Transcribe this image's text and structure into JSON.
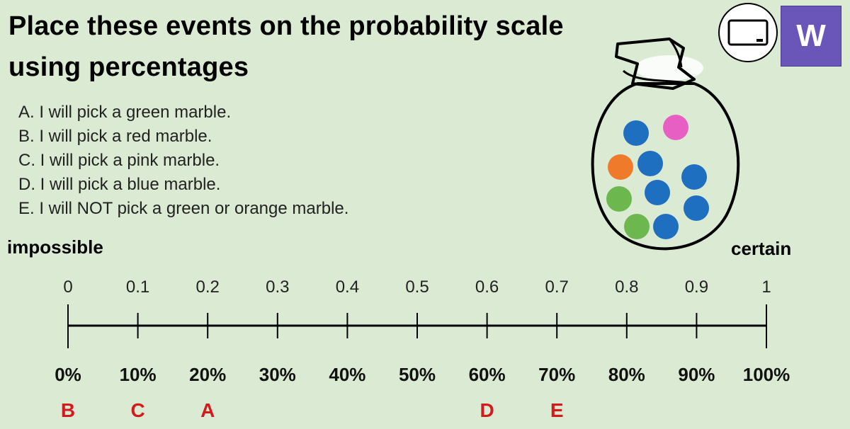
{
  "title": {
    "line1": "Place these events on the probability scale",
    "line2": "using percentages"
  },
  "events": [
    "A. I will pick a green marble.",
    "B. I will pick a red marble.",
    "C. I will pick a pink marble.",
    "D. I will pick a blue marble.",
    "E. I will NOT pick a green or orange marble."
  ],
  "scale": {
    "start_label": "impossible",
    "end_label": "certain",
    "decimals": [
      "0",
      "0.1",
      "0.2",
      "0.3",
      "0.4",
      "0.5",
      "0.6",
      "0.7",
      "0.8",
      "0.9",
      "1"
    ],
    "percentages": [
      "0%",
      "10%",
      "20%",
      "30%",
      "40%",
      "50%",
      "60%",
      "70%",
      "80%",
      "90%",
      "100%"
    ],
    "placements": [
      {
        "letter": "B",
        "value": 0
      },
      {
        "letter": "C",
        "value": 0.1
      },
      {
        "letter": "A",
        "value": 0.2
      },
      {
        "letter": "D",
        "value": 0.6
      },
      {
        "letter": "E",
        "value": 0.7
      }
    ]
  },
  "bag": {
    "marbles": [
      {
        "color": "#1f6fc0"
      },
      {
        "color": "#e85fc4"
      },
      {
        "color": "#ef7a2a"
      },
      {
        "color": "#1f6fc0"
      },
      {
        "color": "#1f6fc0"
      },
      {
        "color": "#6cb84f"
      },
      {
        "color": "#1f6fc0"
      },
      {
        "color": "#1f6fc0"
      },
      {
        "color": "#6cb84f"
      },
      {
        "color": "#1f6fc0"
      }
    ]
  },
  "buttons": {
    "whiteboard_icon": "whiteboard-icon",
    "w_label": "W"
  },
  "colors": {
    "background": "#dbead3",
    "answer_letters": "#d41a1a",
    "w_button": "#6a55b8"
  }
}
